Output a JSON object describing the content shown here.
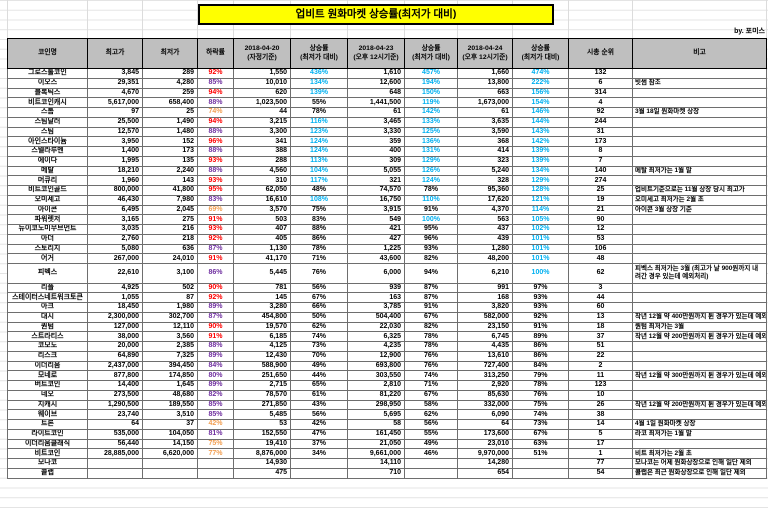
{
  "title": "업비트 원화마켓 상승률(최저가 대비)",
  "byline": "by. 포미스",
  "colors": {
    "title_bg": "#FFFF00",
    "header_bg": "#BFBFBF",
    "drop_high": "#FF0000",
    "drop_mid": "#7030A0",
    "drop_low": "#F2A054",
    "rise_high": "#00B0F0",
    "grid": "#D9D9D9"
  },
  "table": {
    "headers": [
      "코인명",
      "최고가",
      "최저가",
      "하락률",
      "2018-04-20\n(자정기준)",
      "상승률\n(최저가 대비)",
      "2018-04-23\n(오후 12시기준)",
      "상승률\n(최저가 대비)",
      "2018-04-24\n(오후 12시기준)",
      "상승률\n(최저가 대비)",
      "시총 순위",
      "비고"
    ],
    "columns": [
      {
        "key": "name",
        "type": "name"
      },
      {
        "key": "high",
        "type": "num"
      },
      {
        "key": "low",
        "type": "num"
      },
      {
        "key": "drop",
        "type": "drop"
      },
      {
        "key": "p1",
        "type": "num"
      },
      {
        "key": "r1",
        "type": "rise"
      },
      {
        "key": "p2",
        "type": "num"
      },
      {
        "key": "r2",
        "type": "rise"
      },
      {
        "key": "p3",
        "type": "num"
      },
      {
        "key": "r3",
        "type": "rise"
      },
      {
        "key": "rank",
        "type": "rank"
      },
      {
        "key": "note",
        "type": "note"
      }
    ],
    "rows": [
      {
        "name": "그로스톨코인",
        "high": "3,845",
        "low": "289",
        "drop": "92%",
        "p1": "1,550",
        "r1": "436%",
        "p2": "1,610",
        "r2": "457%",
        "p3": "1,660",
        "r3": "474%",
        "rank": "132",
        "note": ""
      },
      {
        "name": "이오스",
        "high": "29,351",
        "low": "4,280",
        "drop": "85%",
        "p1": "10,010",
        "r1": "134%",
        "p2": "12,600",
        "r2": "194%",
        "p3": "13,800",
        "r3": "222%",
        "rank": "6",
        "note": "빗썸 참조"
      },
      {
        "name": "블록틱스",
        "high": "4,670",
        "low": "259",
        "drop": "94%",
        "p1": "620",
        "r1": "139%",
        "p2": "648",
        "r2": "150%",
        "p3": "663",
        "r3": "156%",
        "rank": "314",
        "note": ""
      },
      {
        "name": "비트코인캐시",
        "high": "5,617,000",
        "low": "658,400",
        "drop": "88%",
        "p1": "1,023,500",
        "r1": "55%",
        "p2": "1,441,500",
        "r2": "119%",
        "p3": "1,673,000",
        "r3": "154%",
        "rank": "4",
        "note": ""
      },
      {
        "name": "스톰",
        "high": "97",
        "low": "25",
        "drop": "74%",
        "p1": "44",
        "r1": "78%",
        "p2": "61",
        "r2": "142%",
        "p3": "61",
        "r3": "146%",
        "rank": "92",
        "note": "3월 18일 원화마켓 상장"
      },
      {
        "name": "스팀달러",
        "high": "25,500",
        "low": "1,490",
        "drop": "94%",
        "p1": "3,215",
        "r1": "116%",
        "p2": "3,465",
        "r2": "133%",
        "p3": "3,635",
        "r3": "144%",
        "rank": "244",
        "note": ""
      },
      {
        "name": "스팀",
        "high": "12,570",
        "low": "1,480",
        "drop": "88%",
        "p1": "3,300",
        "r1": "123%",
        "p2": "3,330",
        "r2": "125%",
        "p3": "3,590",
        "r3": "143%",
        "rank": "31",
        "note": ""
      },
      {
        "name": "아인스타이늄",
        "high": "3,950",
        "low": "152",
        "drop": "96%",
        "p1": "341",
        "r1": "124%",
        "p2": "359",
        "r2": "136%",
        "p3": "368",
        "r3": "142%",
        "rank": "173",
        "note": ""
      },
      {
        "name": "스텔라루멘",
        "high": "1,400",
        "low": "173",
        "drop": "88%",
        "p1": "388",
        "r1": "124%",
        "p2": "400",
        "r2": "131%",
        "p3": "414",
        "r3": "139%",
        "rank": "8",
        "note": ""
      },
      {
        "name": "에이다",
        "high": "1,995",
        "low": "135",
        "drop": "93%",
        "p1": "288",
        "r1": "113%",
        "p2": "309",
        "r2": "129%",
        "p3": "323",
        "r3": "139%",
        "rank": "7",
        "note": ""
      },
      {
        "name": "메탈",
        "high": "18,210",
        "low": "2,240",
        "drop": "88%",
        "p1": "4,560",
        "r1": "104%",
        "p2": "5,055",
        "r2": "126%",
        "p3": "5,240",
        "r3": "134%",
        "rank": "140",
        "note": "메탈 최저가는 1월 말"
      },
      {
        "name": "머큐리",
        "high": "1,960",
        "low": "143",
        "drop": "93%",
        "p1": "310",
        "r1": "117%",
        "p2": "321",
        "r2": "124%",
        "p3": "328",
        "r3": "129%",
        "rank": "274",
        "note": ""
      },
      {
        "name": "비트코인골드",
        "high": "800,000",
        "low": "41,800",
        "drop": "95%",
        "p1": "62,050",
        "r1": "48%",
        "p2": "74,570",
        "r2": "78%",
        "p3": "95,360",
        "r3": "128%",
        "rank": "25",
        "note": "업비트기준으로는 11월 상장 당시 최고가"
      },
      {
        "name": "오미세고",
        "high": "46,430",
        "low": "7,980",
        "drop": "83%",
        "p1": "16,610",
        "r1": "108%",
        "p2": "16,750",
        "r2": "110%",
        "p3": "17,620",
        "r3": "121%",
        "rank": "19",
        "note": "오미세고 최저가는 2월 초"
      },
      {
        "name": "아이콘",
        "high": "6,495",
        "low": "2,045",
        "drop": "69%",
        "p1": "3,570",
        "r1": "75%",
        "p2": "3,915",
        "r2": "91%",
        "p3": "4,370",
        "r3": "114%",
        "rank": "21",
        "note": "아이콘 3월 상장 기준"
      },
      {
        "name": "파워렛저",
        "high": "3,165",
        "low": "275",
        "drop": "91%",
        "p1": "503",
        "r1": "83%",
        "p2": "549",
        "r2": "100%",
        "p3": "563",
        "r3": "105%",
        "rank": "90",
        "note": ""
      },
      {
        "name": "뉴이코노미무브먼트",
        "high": "3,035",
        "low": "216",
        "drop": "93%",
        "p1": "407",
        "r1": "88%",
        "p2": "421",
        "r2": "95%",
        "p3": "437",
        "r3": "102%",
        "rank": "12",
        "note": ""
      },
      {
        "name": "아더",
        "high": "2,760",
        "low": "218",
        "drop": "92%",
        "p1": "405",
        "r1": "86%",
        "p2": "427",
        "r2": "96%",
        "p3": "439",
        "r3": "101%",
        "rank": "53",
        "note": ""
      },
      {
        "name": "스토리지",
        "high": "5,080",
        "low": "636",
        "drop": "87%",
        "p1": "1,130",
        "r1": "78%",
        "p2": "1,225",
        "r2": "93%",
        "p3": "1,280",
        "r3": "101%",
        "rank": "106",
        "note": ""
      },
      {
        "name": "어거",
        "high": "267,000",
        "low": "24,010",
        "drop": "91%",
        "p1": "41,170",
        "r1": "71%",
        "p2": "43,600",
        "r2": "82%",
        "p3": "48,200",
        "r3": "101%",
        "rank": "48",
        "note": ""
      },
      {
        "name": "피벡스",
        "high": "22,610",
        "low": "3,100",
        "drop": "86%",
        "p1": "5,445",
        "r1": "76%",
        "p2": "6,000",
        "r2": "94%",
        "p3": "6,210",
        "r3": "100%",
        "rank": "62",
        "note": "피벡스 최저가는 3월 (최고가 날 900원까지 내려간 경우 있는데 예외처리)",
        "tall": true
      },
      {
        "name": "리플",
        "high": "4,925",
        "low": "502",
        "drop": "90%",
        "p1": "781",
        "r1": "56%",
        "p2": "939",
        "r2": "87%",
        "p3": "991",
        "r3": "97%",
        "rank": "3",
        "note": ""
      },
      {
        "name": "스테이터스네트워크토큰",
        "high": "1,055",
        "low": "87",
        "drop": "92%",
        "p1": "145",
        "r1": "67%",
        "p2": "163",
        "r2": "87%",
        "p3": "168",
        "r3": "93%",
        "rank": "44",
        "note": ""
      },
      {
        "name": "아크",
        "high": "18,450",
        "low": "1,980",
        "drop": "89%",
        "p1": "3,280",
        "r1": "66%",
        "p2": "3,785",
        "r2": "91%",
        "p3": "3,820",
        "r3": "93%",
        "rank": "60",
        "note": ""
      },
      {
        "name": "대시",
        "high": "2,300,000",
        "low": "302,700",
        "drop": "87%",
        "p1": "454,800",
        "r1": "50%",
        "p2": "504,400",
        "r2": "67%",
        "p3": "582,000",
        "r3": "92%",
        "rank": "13",
        "note": "작년 12월 약 400만원까지 튄 경우가 있는데 예외처리"
      },
      {
        "name": "퀀텀",
        "high": "127,000",
        "low": "12,110",
        "drop": "90%",
        "p1": "19,570",
        "r1": "62%",
        "p2": "22,030",
        "r2": "82%",
        "p3": "23,150",
        "r3": "91%",
        "rank": "18",
        "note": "퀀텀 최저가는 3월"
      },
      {
        "name": "스트라티스",
        "high": "38,000",
        "low": "3,560",
        "drop": "91%",
        "p1": "6,185",
        "r1": "74%",
        "p2": "6,325",
        "r2": "78%",
        "p3": "6,745",
        "r3": "89%",
        "rank": "37",
        "note": "작년 12월 약 200만원까지 튄 경우가 있는데 예외처리"
      },
      {
        "name": "코모도",
        "high": "20,000",
        "low": "2,385",
        "drop": "88%",
        "p1": "4,125",
        "r1": "73%",
        "p2": "4,235",
        "r2": "78%",
        "p3": "4,435",
        "r3": "86%",
        "rank": "51",
        "note": ""
      },
      {
        "name": "리스크",
        "high": "64,890",
        "low": "7,325",
        "drop": "89%",
        "p1": "12,430",
        "r1": "70%",
        "p2": "12,900",
        "r2": "76%",
        "p3": "13,610",
        "r3": "86%",
        "rank": "22",
        "note": ""
      },
      {
        "name": "이더리움",
        "high": "2,437,000",
        "low": "394,450",
        "drop": "84%",
        "p1": "588,900",
        "r1": "49%",
        "p2": "693,800",
        "r2": "76%",
        "p3": "727,400",
        "r3": "84%",
        "rank": "2",
        "note": ""
      },
      {
        "name": "모네로",
        "high": "877,800",
        "low": "174,850",
        "drop": "80%",
        "p1": "251,650",
        "r1": "44%",
        "p2": "303,550",
        "r2": "74%",
        "p3": "313,250",
        "r3": "79%",
        "rank": "11",
        "note": "작년 12월 약 300만원까지 튄 경우가 있는데 예외처리"
      },
      {
        "name": "버트코인",
        "high": "14,400",
        "low": "1,645",
        "drop": "89%",
        "p1": "2,715",
        "r1": "65%",
        "p2": "2,810",
        "r2": "71%",
        "p3": "2,920",
        "r3": "78%",
        "rank": "123",
        "note": ""
      },
      {
        "name": "네오",
        "high": "273,500",
        "low": "48,680",
        "drop": "82%",
        "p1": "78,570",
        "r1": "61%",
        "p2": "81,220",
        "r2": "67%",
        "p3": "85,630",
        "r3": "76%",
        "rank": "10",
        "note": ""
      },
      {
        "name": "지캐시",
        "high": "1,290,500",
        "low": "189,550",
        "drop": "85%",
        "p1": "271,850",
        "r1": "43%",
        "p2": "298,950",
        "r2": "58%",
        "p3": "332,000",
        "r3": "75%",
        "rank": "26",
        "note": "작년 12월 약 200만원까지 튄 경우가 있는데 예외처리"
      },
      {
        "name": "웨이브",
        "high": "23,740",
        "low": "3,510",
        "drop": "85%",
        "p1": "5,485",
        "r1": "56%",
        "p2": "5,695",
        "r2": "62%",
        "p3": "6,090",
        "r3": "74%",
        "rank": "38",
        "note": ""
      },
      {
        "name": "트론",
        "high": "64",
        "low": "37",
        "drop": "42%",
        "p1": "53",
        "r1": "42%",
        "p2": "58",
        "r2": "56%",
        "p3": "64",
        "r3": "73%",
        "rank": "14",
        "note": "4월 1일 원화마켓 상장"
      },
      {
        "name": "라이트코인",
        "high": "535,000",
        "low": "104,050",
        "drop": "81%",
        "p1": "152,550",
        "r1": "47%",
        "p2": "161,450",
        "r2": "55%",
        "p3": "173,600",
        "r3": "67%",
        "rank": "5",
        "note": "라코 최저가는 1월 말"
      },
      {
        "name": "이더리움클래식",
        "high": "56,440",
        "low": "14,150",
        "drop": "75%",
        "p1": "19,410",
        "r1": "37%",
        "p2": "21,050",
        "r2": "49%",
        "p3": "23,010",
        "r3": "63%",
        "rank": "17",
        "note": ""
      },
      {
        "name": "비트코인",
        "high": "28,885,000",
        "low": "6,620,000",
        "drop": "77%",
        "p1": "8,876,000",
        "r1": "34%",
        "p2": "9,661,000",
        "r2": "46%",
        "p3": "9,970,000",
        "r3": "51%",
        "rank": "1",
        "note": "비트 최저가는 2월 초"
      },
      {
        "name": "모나코",
        "high": "",
        "low": "",
        "drop": "",
        "p1": "14,930",
        "r1": "",
        "p2": "14,110",
        "r2": "",
        "p3": "14,280",
        "r3": "",
        "rank": "77",
        "note": "모나코는 어제 원화상장으로 인해 일단 제외"
      },
      {
        "name": "콜랩",
        "high": "",
        "low": "",
        "drop": "",
        "p1": "475",
        "r1": "",
        "p2": "710",
        "r2": "",
        "p3": "654",
        "r3": "",
        "rank": "54",
        "note": "콜랩은 최근 원화상장으로 인해 일단 제외"
      }
    ]
  }
}
